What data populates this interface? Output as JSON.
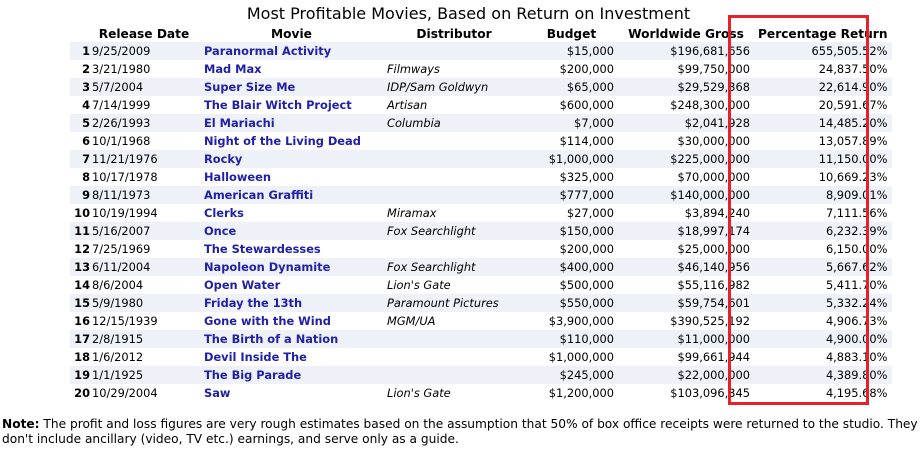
{
  "title": "Most Profitable Movies, Based on Return on Investment",
  "columns": {
    "release_date": "Release Date",
    "movie": "Movie",
    "distributor": "Distributor",
    "budget": "Budget",
    "worldwide_gross": "Worldwide Gross",
    "percentage_return": "Percentage Return"
  },
  "rows": [
    {
      "rank": "1",
      "date": "9/25/2009",
      "movie": "Paranormal Activity",
      "distributor": "",
      "budget": "$15,000",
      "gross": "$196,681,656",
      "pct": "655,505.52%"
    },
    {
      "rank": "2",
      "date": "3/21/1980",
      "movie": "Mad Max",
      "distributor": "Filmways",
      "budget": "$200,000",
      "gross": "$99,750,000",
      "pct": "24,837.50%"
    },
    {
      "rank": "3",
      "date": "5/7/2004",
      "movie": "Super Size Me",
      "distributor": "IDP/Sam Goldwyn",
      "budget": "$65,000",
      "gross": "$29,529,368",
      "pct": "22,614.90%"
    },
    {
      "rank": "4",
      "date": "7/14/1999",
      "movie": "The Blair Witch Project",
      "distributor": "Artisan",
      "budget": "$600,000",
      "gross": "$248,300,000",
      "pct": "20,591.67%"
    },
    {
      "rank": "5",
      "date": "2/26/1993",
      "movie": "El Mariachi",
      "distributor": "Columbia",
      "budget": "$7,000",
      "gross": "$2,041,928",
      "pct": "14,485.20%"
    },
    {
      "rank": "6",
      "date": "10/1/1968",
      "movie": "Night of the Living Dead",
      "distributor": "",
      "budget": "$114,000",
      "gross": "$30,000,000",
      "pct": "13,057.89%"
    },
    {
      "rank": "7",
      "date": "11/21/1976",
      "movie": "Rocky",
      "distributor": "",
      "budget": "$1,000,000",
      "gross": "$225,000,000",
      "pct": "11,150.00%"
    },
    {
      "rank": "8",
      "date": "10/17/1978",
      "movie": "Halloween",
      "distributor": "",
      "budget": "$325,000",
      "gross": "$70,000,000",
      "pct": "10,669.23%"
    },
    {
      "rank": "9",
      "date": "8/11/1973",
      "movie": "American Graffiti",
      "distributor": "",
      "budget": "$777,000",
      "gross": "$140,000,000",
      "pct": "8,909.01%"
    },
    {
      "rank": "10",
      "date": "10/19/1994",
      "movie": "Clerks",
      "distributor": "Miramax",
      "budget": "$27,000",
      "gross": "$3,894,240",
      "pct": "7,111.56%"
    },
    {
      "rank": "11",
      "date": "5/16/2007",
      "movie": "Once",
      "distributor": "Fox Searchlight",
      "budget": "$150,000",
      "gross": "$18,997,174",
      "pct": "6,232.39%"
    },
    {
      "rank": "12",
      "date": "7/25/1969",
      "movie": "The Stewardesses",
      "distributor": "",
      "budget": "$200,000",
      "gross": "$25,000,000",
      "pct": "6,150.00%"
    },
    {
      "rank": "13",
      "date": "6/11/2004",
      "movie": "Napoleon Dynamite",
      "distributor": "Fox Searchlight",
      "budget": "$400,000",
      "gross": "$46,140,956",
      "pct": "5,667.62%"
    },
    {
      "rank": "14",
      "date": "8/6/2004",
      "movie": "Open Water",
      "distributor": "Lion's Gate",
      "budget": "$500,000",
      "gross": "$55,116,982",
      "pct": "5,411.70%"
    },
    {
      "rank": "15",
      "date": "5/9/1980",
      "movie": "Friday the 13th",
      "distributor": "Paramount Pictures",
      "budget": "$550,000",
      "gross": "$59,754,601",
      "pct": "5,332.24%"
    },
    {
      "rank": "16",
      "date": "12/15/1939",
      "movie": "Gone with the Wind",
      "distributor": "MGM/UA",
      "budget": "$3,900,000",
      "gross": "$390,525,192",
      "pct": "4,906.73%"
    },
    {
      "rank": "17",
      "date": "2/8/1915",
      "movie": "The Birth of a Nation",
      "distributor": "",
      "budget": "$110,000",
      "gross": "$11,000,000",
      "pct": "4,900.00%"
    },
    {
      "rank": "18",
      "date": "1/6/2012",
      "movie": "Devil Inside The",
      "distributor": "",
      "budget": "$1,000,000",
      "gross": "$99,661,944",
      "pct": "4,883.10%"
    },
    {
      "rank": "19",
      "date": "1/1/1925",
      "movie": "The Big Parade",
      "distributor": "",
      "budget": "$245,000",
      "gross": "$22,000,000",
      "pct": "4,389.80%"
    },
    {
      "rank": "20",
      "date": "10/29/2004",
      "movie": "Saw",
      "distributor": "Lion's Gate",
      "budget": "$1,200,000",
      "gross": "$103,096,345",
      "pct": "4,195.68%"
    }
  ],
  "note": {
    "label": "Note:",
    "text": " The profit and loss figures are very rough estimates based on the assumption that 50% of box office receipts were returned to the studio. They don't include ancillary (video, TV etc.) earnings, and serve only as a guide."
  },
  "colors": {
    "link": "#2020a8",
    "row_stripe": "#eef1f7",
    "highlight_border": "#e8202a"
  }
}
